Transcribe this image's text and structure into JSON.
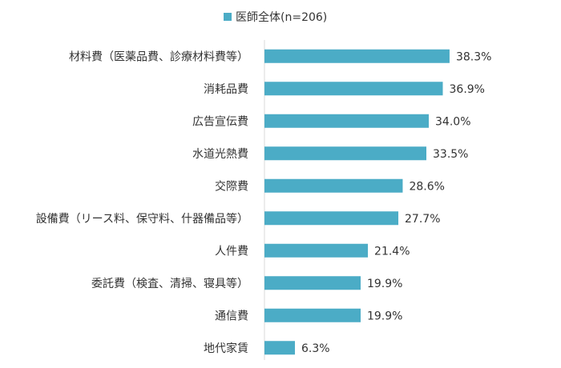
{
  "chart_data": {
    "type": "bar",
    "orientation": "horizontal",
    "categories": [
      "材料費（医薬品費、診療材料費等）",
      "消耗品費",
      "広告宣伝費",
      "水道光熱費",
      "交際費",
      "設備費（リース料、保守料、什器備品等）",
      "人件費",
      "委託費（検査、清掃、寝具等）",
      "通信費",
      "地代家賃"
    ],
    "series": [
      {
        "name": "医師全体(n=206)",
        "values": [
          38.3,
          36.9,
          34.0,
          33.5,
          28.6,
          27.7,
          21.4,
          19.9,
          19.9,
          6.3
        ],
        "labels": [
          "38.3%",
          "36.9%",
          "34.0%",
          "33.5%",
          "28.6%",
          "27.7%",
          "21.4%",
          "19.9%",
          "19.9%",
          "6.3%"
        ],
        "color": "#4bacc6"
      }
    ],
    "xlim": [
      0,
      100
    ],
    "grid": false,
    "legend_position": "top-center",
    "title": "",
    "xlabel": "",
    "ylabel": ""
  }
}
